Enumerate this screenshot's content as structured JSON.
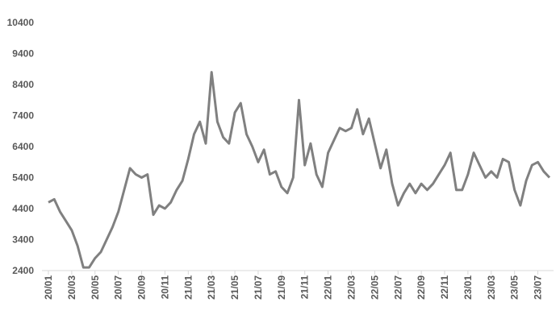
{
  "chart_data": {
    "type": "line",
    "categories": [
      "20/01",
      null,
      null,
      null,
      "20/03",
      null,
      null,
      null,
      "20/05",
      null,
      null,
      null,
      "20/07",
      null,
      null,
      null,
      "20/09",
      null,
      null,
      null,
      "20/11",
      null,
      null,
      null,
      "21/01",
      null,
      null,
      null,
      "21/03",
      null,
      null,
      null,
      "21/05",
      null,
      null,
      null,
      "21/07",
      null,
      null,
      null,
      "21/09",
      null,
      null,
      null,
      "21/11",
      null,
      null,
      null,
      "22/01",
      null,
      null,
      null,
      "22/03",
      null,
      null,
      null,
      "22/05",
      null,
      null,
      null,
      "22/07",
      null,
      null,
      null,
      "22/09",
      null,
      null,
      null,
      "22/11",
      null,
      null,
      null,
      "23/01",
      null,
      null,
      null,
      "23/03",
      null,
      null,
      null,
      "23/05",
      null,
      null,
      null,
      "23/07",
      null,
      null
    ],
    "series": [
      {
        "color": "#808080",
        "values": [
          4600,
          4700,
          4300,
          4000,
          3700,
          3200,
          2500,
          2500,
          2800,
          3000,
          3400,
          3800,
          4300,
          5000,
          5700,
          5500,
          5400,
          5500,
          4200,
          4500,
          4400,
          4600,
          5000,
          5300,
          6000,
          6800,
          7200,
          6500,
          8800,
          7200,
          6700,
          6500,
          7500,
          7800,
          6800,
          6400,
          5900,
          6300,
          5500,
          5600,
          5100,
          4900,
          5400,
          7900,
          5800,
          6500,
          5500,
          5100,
          6200,
          6600,
          7000,
          6900,
          7000,
          7600,
          6800,
          7300,
          6500,
          5700,
          6300,
          5200,
          4500,
          4900,
          5200,
          4900,
          5200,
          5000,
          5200,
          5500,
          5800,
          6200,
          5000,
          5000,
          5500,
          6200,
          5800,
          5400,
          5600,
          5400,
          6000,
          5900,
          5000,
          4500,
          5300,
          5800,
          5900,
          5600,
          5400
        ]
      }
    ],
    "ylim": [
      2400,
      10400
    ],
    "yticks": [
      2400,
      3400,
      4400,
      5400,
      6400,
      7400,
      8400,
      9400,
      10400
    ]
  }
}
